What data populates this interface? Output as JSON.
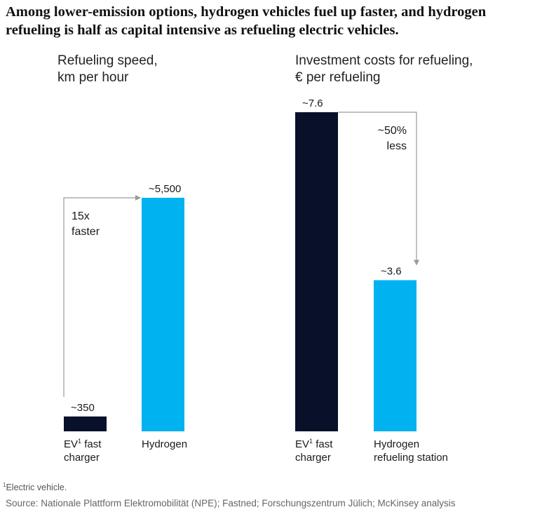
{
  "title": "Among lower-emission options, hydrogen vehicles fuel up faster, and hydrogen refueling is half as capital intensive as refueling electric vehicles.",
  "colors": {
    "ev": "#08102a",
    "hydrogen": "#00b2ef",
    "arrow": "#9a9a9a"
  },
  "chart_data": [
    {
      "type": "bar",
      "title": [
        "Refueling speed,",
        "km per hour"
      ],
      "categories": [
        [
          "EV",
          "fast"
        ],
        [
          "Hydrogen"
        ]
      ],
      "category_line2": [
        "charger",
        ""
      ],
      "values": [
        350,
        5500
      ],
      "data_labels": [
        "~350",
        "~5,500"
      ],
      "annotation": [
        "15x",
        "faster"
      ],
      "ylim": [
        0,
        7000
      ]
    },
    {
      "type": "bar",
      "title": [
        "Investment costs for refueling,",
        "€ per refueling"
      ],
      "categories": [
        [
          "EV",
          "fast"
        ],
        [
          "Hydrogen"
        ]
      ],
      "category_line2": [
        "charger",
        "refueling station"
      ],
      "values": [
        7.6,
        3.6
      ],
      "data_labels": [
        "~7.6",
        "~3.6"
      ],
      "annotation": [
        "~50%",
        "less"
      ],
      "ylim": [
        0,
        7.6
      ]
    }
  ],
  "footnote": {
    "marker": "1",
    "text": "Electric vehicle."
  },
  "source": "Source: Nationale Plattform Elektromobilität (NPE); Fastned; Forschungszentrum Jülich; McKinsey analysis"
}
